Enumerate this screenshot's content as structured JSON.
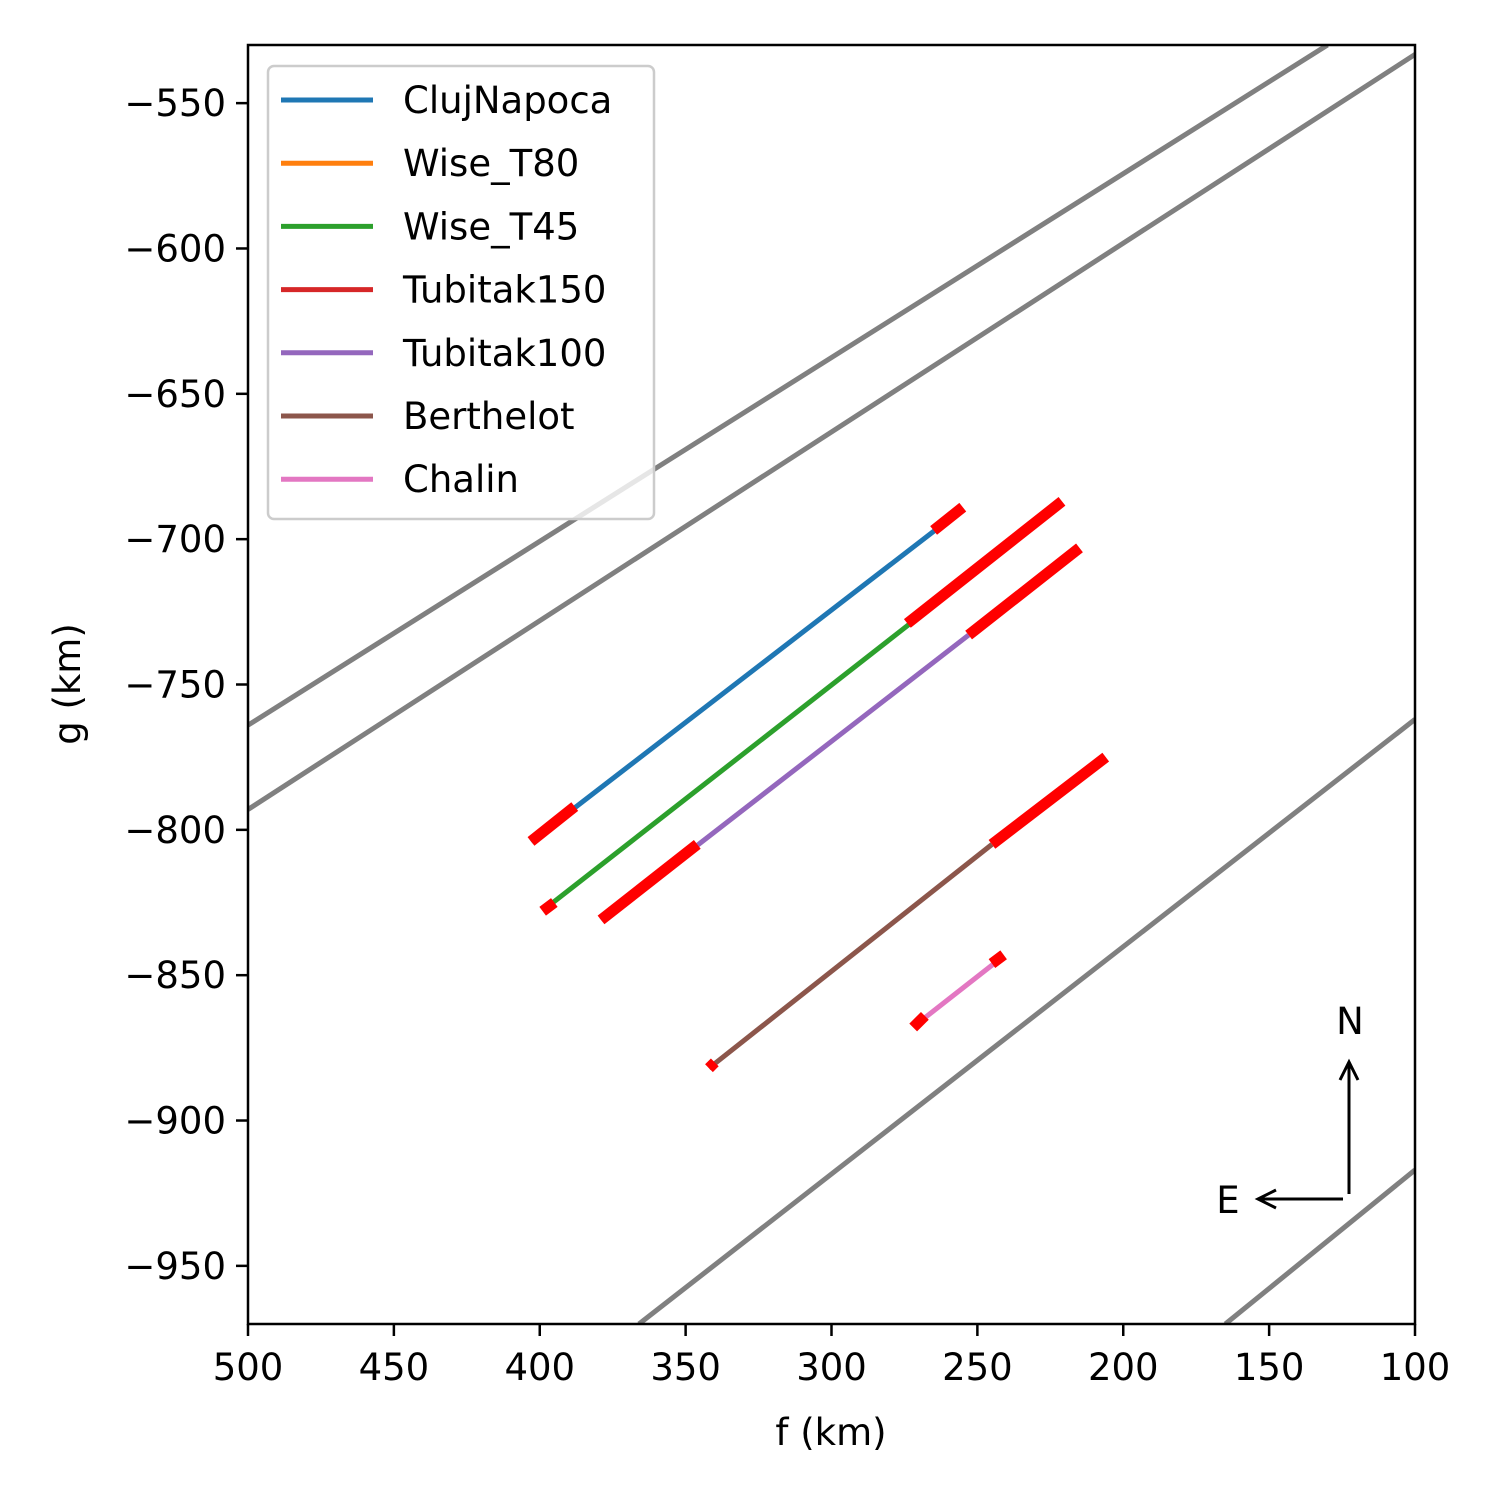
{
  "chart_data": {
    "type": "line",
    "xlabel": "f (km)",
    "ylabel": "g (km)",
    "xlim": [
      500,
      100
    ],
    "ylim": [
      -970,
      -530
    ],
    "x_ticks": [
      500,
      450,
      400,
      350,
      300,
      250,
      200,
      150,
      100
    ],
    "x_tick_labels": [
      "500",
      "450",
      "400",
      "350",
      "300",
      "250",
      "200",
      "150",
      "100"
    ],
    "y_ticks": [
      -550,
      -600,
      -650,
      -700,
      -750,
      -800,
      -850,
      -900,
      -950
    ],
    "y_tick_labels": [
      "−550",
      "−600",
      "−650",
      "−700",
      "−750",
      "−800",
      "−850",
      "−900",
      "−950"
    ],
    "grid": false,
    "legend_position": "top-left",
    "series": [
      {
        "name": "ClujNapoca",
        "color": "#1f77b4",
        "points": [
          [
            403,
            -804
          ],
          [
            262,
            -695
          ]
        ],
        "highlights": [
          [
            [
              403,
              -804
            ],
            [
              388,
              -792
            ]
          ],
          [
            [
              265,
              -697
            ],
            [
              255,
              -689
            ]
          ]
        ]
      },
      {
        "name": "Wise_T80",
        "color": "#ff7f0e",
        "points": [],
        "highlights": []
      },
      {
        "name": "Wise_T45",
        "color": "#2ca02c",
        "points": [
          [
            398,
            -827
          ],
          [
            273,
            -729
          ]
        ],
        "highlights": [
          [
            [
              399,
              -828
            ],
            [
              395,
              -825
            ]
          ],
          [
            [
              274,
              -729
            ],
            [
              221,
              -687
            ]
          ]
        ]
      },
      {
        "name": "Tubitak150",
        "color": "#d62728",
        "points": [],
        "highlights": []
      },
      {
        "name": "Tubitak100",
        "color": "#9467bd",
        "points": [
          [
            379,
            -831
          ],
          [
            253,
            -733
          ]
        ],
        "highlights": [
          [
            [
              379,
              -831
            ],
            [
              346,
              -805
            ]
          ],
          [
            [
              253,
              -733
            ],
            [
              215,
              -703
            ]
          ]
        ]
      },
      {
        "name": "Berthelot",
        "color": "#8c564b",
        "points": [
          [
            342,
            -882
          ],
          [
            245,
            -805
          ]
        ],
        "highlights": [
          [
            [
              342,
              -882
            ],
            [
              340,
              -880
            ]
          ],
          [
            [
              245,
              -805
            ],
            [
              206,
              -775
            ]
          ]
        ]
      },
      {
        "name": "Chalin",
        "color": "#e377c2",
        "points": [
          [
            271,
            -867
          ],
          [
            243,
            -845
          ]
        ],
        "highlights": [
          [
            [
              272,
              -868
            ],
            [
              268,
              -864
            ]
          ],
          [
            [
              245,
              -846
            ],
            [
              241,
              -843
            ]
          ]
        ]
      }
    ],
    "reference_lines": [
      {
        "color": "#808080",
        "points": [
          [
            500,
            -764
          ],
          [
            130,
            -530
          ]
        ]
      },
      {
        "color": "#808080",
        "points": [
          [
            500,
            -793
          ],
          [
            95,
            -530
          ]
        ]
      },
      {
        "color": "#808080",
        "points": [
          [
            366,
            -970
          ],
          [
            100,
            -762
          ]
        ]
      },
      {
        "color": "#808080",
        "points": [
          [
            165,
            -970
          ],
          [
            100,
            -917
          ]
        ]
      }
    ],
    "compass": {
      "north_label": "N",
      "east_label": "E"
    }
  }
}
